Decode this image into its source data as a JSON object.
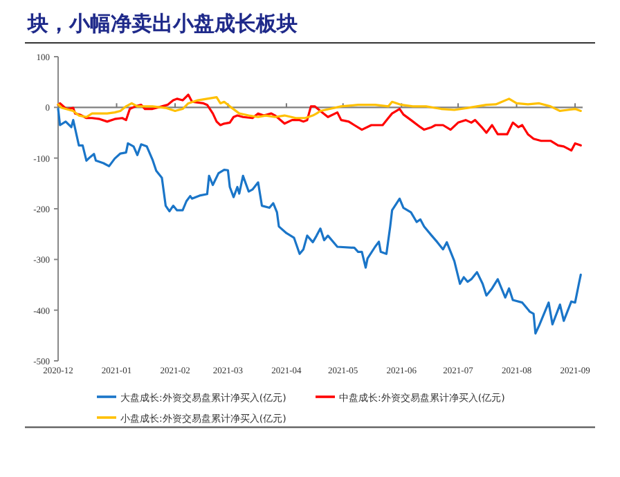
{
  "chart_data": {
    "type": "line",
    "title": "块，小幅净卖出小盘成长板块",
    "xlim": [
      "2020-12-01",
      "2021-09-05"
    ],
    "xticks": [
      "2020-12",
      "2021-01",
      "2021-02",
      "2021-03",
      "2021-04",
      "2021-05",
      "2021-06",
      "2021-07",
      "2021-08",
      "2021-09"
    ],
    "ylim": [
      -500,
      100
    ],
    "yticks": [
      -500,
      -400,
      -300,
      -200,
      -100,
      0,
      100
    ],
    "ref_lines": [
      {
        "axis": "y",
        "value": 0,
        "color": "#7f7f7f"
      }
    ],
    "grid": false,
    "legend": "bottom",
    "marker": "none",
    "line_style": "solid",
    "series": [
      {
        "name": "大盘成长:外资交易盘累计净买入(亿元)",
        "color": "#1a75c8",
        "x": [
          "2020-12-01",
          "2020-12-02",
          "2020-12-05",
          "2020-12-08",
          "2020-12-09",
          "2020-12-12",
          "2020-12-14",
          "2020-12-16",
          "2020-12-18",
          "2020-12-20",
          "2020-12-21",
          "2020-12-25",
          "2020-12-28",
          "2020-12-31",
          "2021-01-03",
          "2021-01-06",
          "2021-01-07",
          "2021-01-10",
          "2021-01-12",
          "2021-01-14",
          "2021-01-17",
          "2021-01-20",
          "2021-01-22",
          "2021-01-25",
          "2021-01-27",
          "2021-01-29",
          "2021-01-31",
          "2021-02-02",
          "2021-02-05",
          "2021-02-07",
          "2021-02-09",
          "2021-02-10",
          "2021-02-14",
          "2021-02-18",
          "2021-02-19",
          "2021-02-21",
          "2021-02-24",
          "2021-02-27",
          "2021-03-01",
          "2021-03-02",
          "2021-03-04",
          "2021-03-06",
          "2021-03-07",
          "2021-03-09",
          "2021-03-12",
          "2021-03-14",
          "2021-03-17",
          "2021-03-19",
          "2021-03-23",
          "2021-03-25",
          "2021-03-27",
          "2021-03-28",
          "2021-04-01",
          "2021-04-05",
          "2021-04-08",
          "2021-04-10",
          "2021-04-12",
          "2021-04-15",
          "2021-04-17",
          "2021-04-19",
          "2021-04-21",
          "2021-04-23",
          "2021-04-28",
          "2021-05-07",
          "2021-05-09",
          "2021-05-11",
          "2021-05-13",
          "2021-05-14",
          "2021-05-18",
          "2021-05-20",
          "2021-05-21",
          "2021-05-24",
          "2021-05-26",
          "2021-05-27",
          "2021-05-31",
          "2021-06-02",
          "2021-06-06",
          "2021-06-09",
          "2021-06-11",
          "2021-06-13",
          "2021-06-17",
          "2021-06-20",
          "2021-06-23",
          "2021-06-25",
          "2021-06-29",
          "2021-07-02",
          "2021-07-04",
          "2021-07-06",
          "2021-07-08",
          "2021-07-11",
          "2021-07-14",
          "2021-07-16",
          "2021-07-19",
          "2021-07-22",
          "2021-07-26",
          "2021-07-28",
          "2021-07-30",
          "2021-08-04",
          "2021-08-08",
          "2021-08-10",
          "2021-08-11",
          "2021-08-13",
          "2021-08-15",
          "2021-08-18",
          "2021-08-20",
          "2021-08-24",
          "2021-08-26",
          "2021-08-30",
          "2021-09-01",
          "2021-09-03",
          "2021-09-04"
        ],
        "values": [
          -3,
          -35,
          -28,
          -39,
          -25,
          -75,
          -75,
          -105,
          -98,
          -92,
          -105,
          -110,
          -116,
          -101,
          -91,
          -89,
          -71,
          -77,
          -94,
          -73,
          -77,
          -103,
          -125,
          -139,
          -194,
          -205,
          -194,
          -203,
          -203,
          -185,
          -175,
          -180,
          -174,
          -171,
          -135,
          -153,
          -130,
          -123,
          -124,
          -157,
          -177,
          -157,
          -170,
          -135,
          -166,
          -162,
          -148,
          -194,
          -198,
          -189,
          -207,
          -235,
          -248,
          -257,
          -289,
          -280,
          -253,
          -266,
          -253,
          -239,
          -262,
          -253,
          -275,
          -277,
          -285,
          -285,
          -316,
          -298,
          -275,
          -265,
          -285,
          -289,
          -235,
          -203,
          -180,
          -198,
          -207,
          -226,
          -221,
          -235,
          -253,
          -266,
          -280,
          -266,
          -303,
          -348,
          -335,
          -344,
          -339,
          -325,
          -348,
          -371,
          -357,
          -339,
          -375,
          -357,
          -380,
          -385,
          -403,
          -407,
          -446,
          -430,
          -412,
          -385,
          -428,
          -389,
          -421,
          -383,
          -385,
          -348,
          -330
        ]
      },
      {
        "name": "中盘成长:外资交易盘累计净买入(亿元)",
        "color": "#ff0000",
        "x": [
          "2020-12-01",
          "2020-12-02",
          "2020-12-05",
          "2020-12-06",
          "2020-12-09",
          "2020-12-10",
          "2020-12-13",
          "2020-12-16",
          "2020-12-19",
          "2020-12-23",
          "2020-12-27",
          "2020-12-31",
          "2021-01-04",
          "2021-01-06",
          "2021-01-08",
          "2021-01-11",
          "2021-01-14",
          "2021-01-16",
          "2021-01-20",
          "2021-01-25",
          "2021-01-28",
          "2021-01-31",
          "2021-02-02",
          "2021-02-05",
          "2021-02-08",
          "2021-02-10",
          "2021-02-16",
          "2021-02-18",
          "2021-02-21",
          "2021-02-23",
          "2021-02-25",
          "2021-02-27",
          "2021-03-02",
          "2021-03-04",
          "2021-03-06",
          "2021-03-09",
          "2021-03-14",
          "2021-03-17",
          "2021-03-20",
          "2021-03-24",
          "2021-03-26",
          "2021-03-31",
          "2021-04-04",
          "2021-04-08",
          "2021-04-10",
          "2021-04-12",
          "2021-04-14",
          "2021-04-16",
          "2021-04-19",
          "2021-04-20",
          "2021-04-23",
          "2021-04-28",
          "2021-04-30",
          "2021-05-04",
          "2021-05-07",
          "2021-05-11",
          "2021-05-16",
          "2021-05-22",
          "2021-05-25",
          "2021-05-27",
          "2021-05-31",
          "2021-06-02",
          "2021-06-06",
          "2021-06-11",
          "2021-06-13",
          "2021-06-17",
          "2021-06-19",
          "2021-06-23",
          "2021-06-27",
          "2021-07-01",
          "2021-07-05",
          "2021-07-08",
          "2021-07-10",
          "2021-07-14",
          "2021-07-16",
          "2021-07-19",
          "2021-07-22",
          "2021-07-27",
          "2021-07-30",
          "2021-08-02",
          "2021-08-04",
          "2021-08-07",
          "2021-08-10",
          "2021-08-14",
          "2021-08-19",
          "2021-08-23",
          "2021-08-26",
          "2021-08-30",
          "2021-09-01",
          "2021-09-04"
        ],
        "values": [
          5,
          8,
          -2,
          -3,
          -1,
          -12,
          -15,
          -21,
          -21,
          -23,
          -28,
          -23,
          -21,
          -25,
          -3,
          2,
          5,
          -3,
          -3,
          2,
          5,
          14,
          17,
          14,
          25,
          11,
          8,
          5,
          -12,
          -28,
          -35,
          -32,
          -30,
          -19,
          -16,
          -19,
          -21,
          -12,
          -16,
          -12,
          -16,
          -32,
          -25,
          -25,
          -28,
          -25,
          2,
          2,
          -7,
          -10,
          -19,
          -10,
          -25,
          -28,
          -35,
          -44,
          -35,
          -35,
          -21,
          -12,
          -3,
          -14,
          -25,
          -39,
          -44,
          -39,
          -35,
          -35,
          -44,
          -30,
          -25,
          -30,
          -25,
          -41,
          -50,
          -35,
          -53,
          -53,
          -30,
          -39,
          -35,
          -53,
          -62,
          -66,
          -66,
          -75,
          -77,
          -85,
          -71,
          -75
        ]
      },
      {
        "name": "小盘成长:外资交易盘累计净买入(亿元)",
        "color": "#ffc000",
        "x": [
          "2020-12-01",
          "2020-12-03",
          "2020-12-07",
          "2020-12-09",
          "2020-12-12",
          "2020-12-16",
          "2020-12-19",
          "2020-12-27",
          "2020-12-31",
          "2021-01-03",
          "2021-01-06",
          "2021-01-09",
          "2021-01-12",
          "2021-01-20",
          "2021-01-27",
          "2021-02-01",
          "2021-02-05",
          "2021-02-08",
          "2021-02-13",
          "2021-02-18",
          "2021-02-23",
          "2021-02-25",
          "2021-02-27",
          "2021-03-02",
          "2021-03-07",
          "2021-03-12",
          "2021-03-17",
          "2021-03-21",
          "2021-03-26",
          "2021-03-31",
          "2021-04-06",
          "2021-04-11",
          "2021-04-15",
          "2021-04-17",
          "2021-04-19",
          "2021-04-24",
          "2021-04-30",
          "2021-05-09",
          "2021-05-18",
          "2021-05-25",
          "2021-05-27",
          "2021-06-01",
          "2021-06-07",
          "2021-06-14",
          "2021-06-22",
          "2021-06-29",
          "2021-07-06",
          "2021-07-16",
          "2021-07-21",
          "2021-07-28",
          "2021-08-01",
          "2021-08-07",
          "2021-08-13",
          "2021-08-19",
          "2021-08-24",
          "2021-08-28",
          "2021-09-01",
          "2021-09-04"
        ],
        "values": [
          6,
          -1,
          -5,
          -7,
          -16,
          -19,
          -12,
          -12,
          -10,
          -7,
          2,
          8,
          2,
          2,
          -1,
          -7,
          -3,
          8,
          14,
          17,
          20,
          8,
          11,
          2,
          -12,
          -16,
          -19,
          -16,
          -19,
          -16,
          -21,
          -21,
          -16,
          -12,
          -7,
          -3,
          2,
          5,
          5,
          2,
          11,
          5,
          2,
          2,
          -3,
          -5,
          -1,
          5,
          6,
          17,
          8,
          6,
          8,
          2,
          -7,
          -5,
          -3,
          -7
        ]
      }
    ]
  }
}
